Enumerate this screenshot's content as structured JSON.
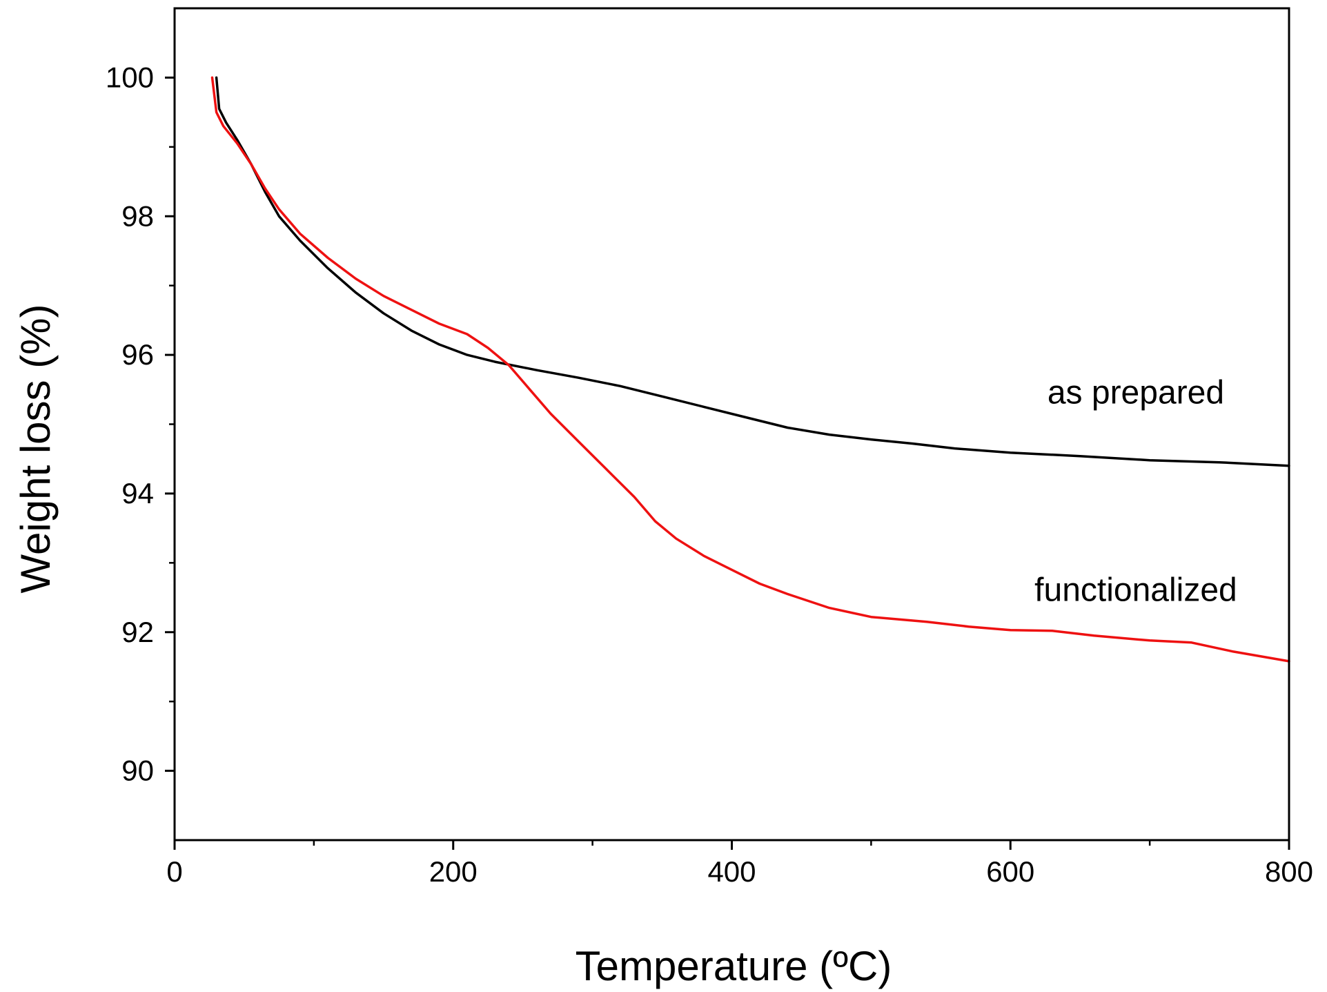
{
  "chart_data": {
    "type": "line",
    "xlabel": "Temperature (ºC)",
    "ylabel": "Weight loss (%)",
    "xlim": [
      0,
      800
    ],
    "ylim": [
      89,
      101
    ],
    "x_ticks": [
      0,
      200,
      400,
      600,
      800
    ],
    "x_tick_labels": [
      "0",
      "200",
      "400",
      "600",
      "800"
    ],
    "x_minor_ticks": [
      100,
      300,
      500,
      700
    ],
    "y_ticks": [
      90,
      92,
      94,
      96,
      98,
      100
    ],
    "y_tick_labels": [
      "90",
      "92",
      "94",
      "96",
      "98",
      "100"
    ],
    "y_minor_ticks": [
      91,
      93,
      95,
      97,
      99
    ],
    "grid": false,
    "series": [
      {
        "name": "as prepared",
        "color": "#000000",
        "points": [
          [
            30,
            100.0
          ],
          [
            32,
            99.55
          ],
          [
            37,
            99.35
          ],
          [
            45,
            99.1
          ],
          [
            55,
            98.75
          ],
          [
            65,
            98.35
          ],
          [
            75,
            98.0
          ],
          [
            90,
            97.65
          ],
          [
            110,
            97.25
          ],
          [
            130,
            96.9
          ],
          [
            150,
            96.6
          ],
          [
            170,
            96.35
          ],
          [
            190,
            96.15
          ],
          [
            210,
            96.0
          ],
          [
            230,
            95.9
          ],
          [
            260,
            95.78
          ],
          [
            290,
            95.67
          ],
          [
            320,
            95.55
          ],
          [
            350,
            95.4
          ],
          [
            380,
            95.25
          ],
          [
            410,
            95.1
          ],
          [
            440,
            94.95
          ],
          [
            470,
            94.85
          ],
          [
            500,
            94.78
          ],
          [
            530,
            94.72
          ],
          [
            560,
            94.65
          ],
          [
            600,
            94.59
          ],
          [
            650,
            94.54
          ],
          [
            700,
            94.48
          ],
          [
            750,
            94.45
          ],
          [
            800,
            94.4
          ]
        ]
      },
      {
        "name": "functionalized",
        "color": "#ee1111",
        "points": [
          [
            27,
            100.0
          ],
          [
            30,
            99.5
          ],
          [
            35,
            99.3
          ],
          [
            45,
            99.05
          ],
          [
            55,
            98.75
          ],
          [
            65,
            98.4
          ],
          [
            75,
            98.1
          ],
          [
            90,
            97.75
          ],
          [
            110,
            97.4
          ],
          [
            130,
            97.1
          ],
          [
            150,
            96.85
          ],
          [
            170,
            96.65
          ],
          [
            190,
            96.45
          ],
          [
            210,
            96.3
          ],
          [
            225,
            96.1
          ],
          [
            240,
            95.85
          ],
          [
            255,
            95.5
          ],
          [
            270,
            95.15
          ],
          [
            290,
            94.75
          ],
          [
            310,
            94.35
          ],
          [
            330,
            93.95
          ],
          [
            345,
            93.6
          ],
          [
            360,
            93.35
          ],
          [
            380,
            93.1
          ],
          [
            400,
            92.9
          ],
          [
            420,
            92.7
          ],
          [
            440,
            92.55
          ],
          [
            470,
            92.35
          ],
          [
            500,
            92.22
          ],
          [
            540,
            92.15
          ],
          [
            570,
            92.08
          ],
          [
            600,
            92.03
          ],
          [
            630,
            92.02
          ],
          [
            660,
            91.95
          ],
          [
            700,
            91.88
          ],
          [
            730,
            91.85
          ],
          [
            760,
            91.72
          ],
          [
            800,
            91.58
          ]
        ]
      }
    ],
    "annotations": [
      {
        "text": "as prepared",
        "x": 690,
        "y": 95.3
      },
      {
        "text": "functionalized",
        "x": 690,
        "y": 92.45
      }
    ]
  }
}
